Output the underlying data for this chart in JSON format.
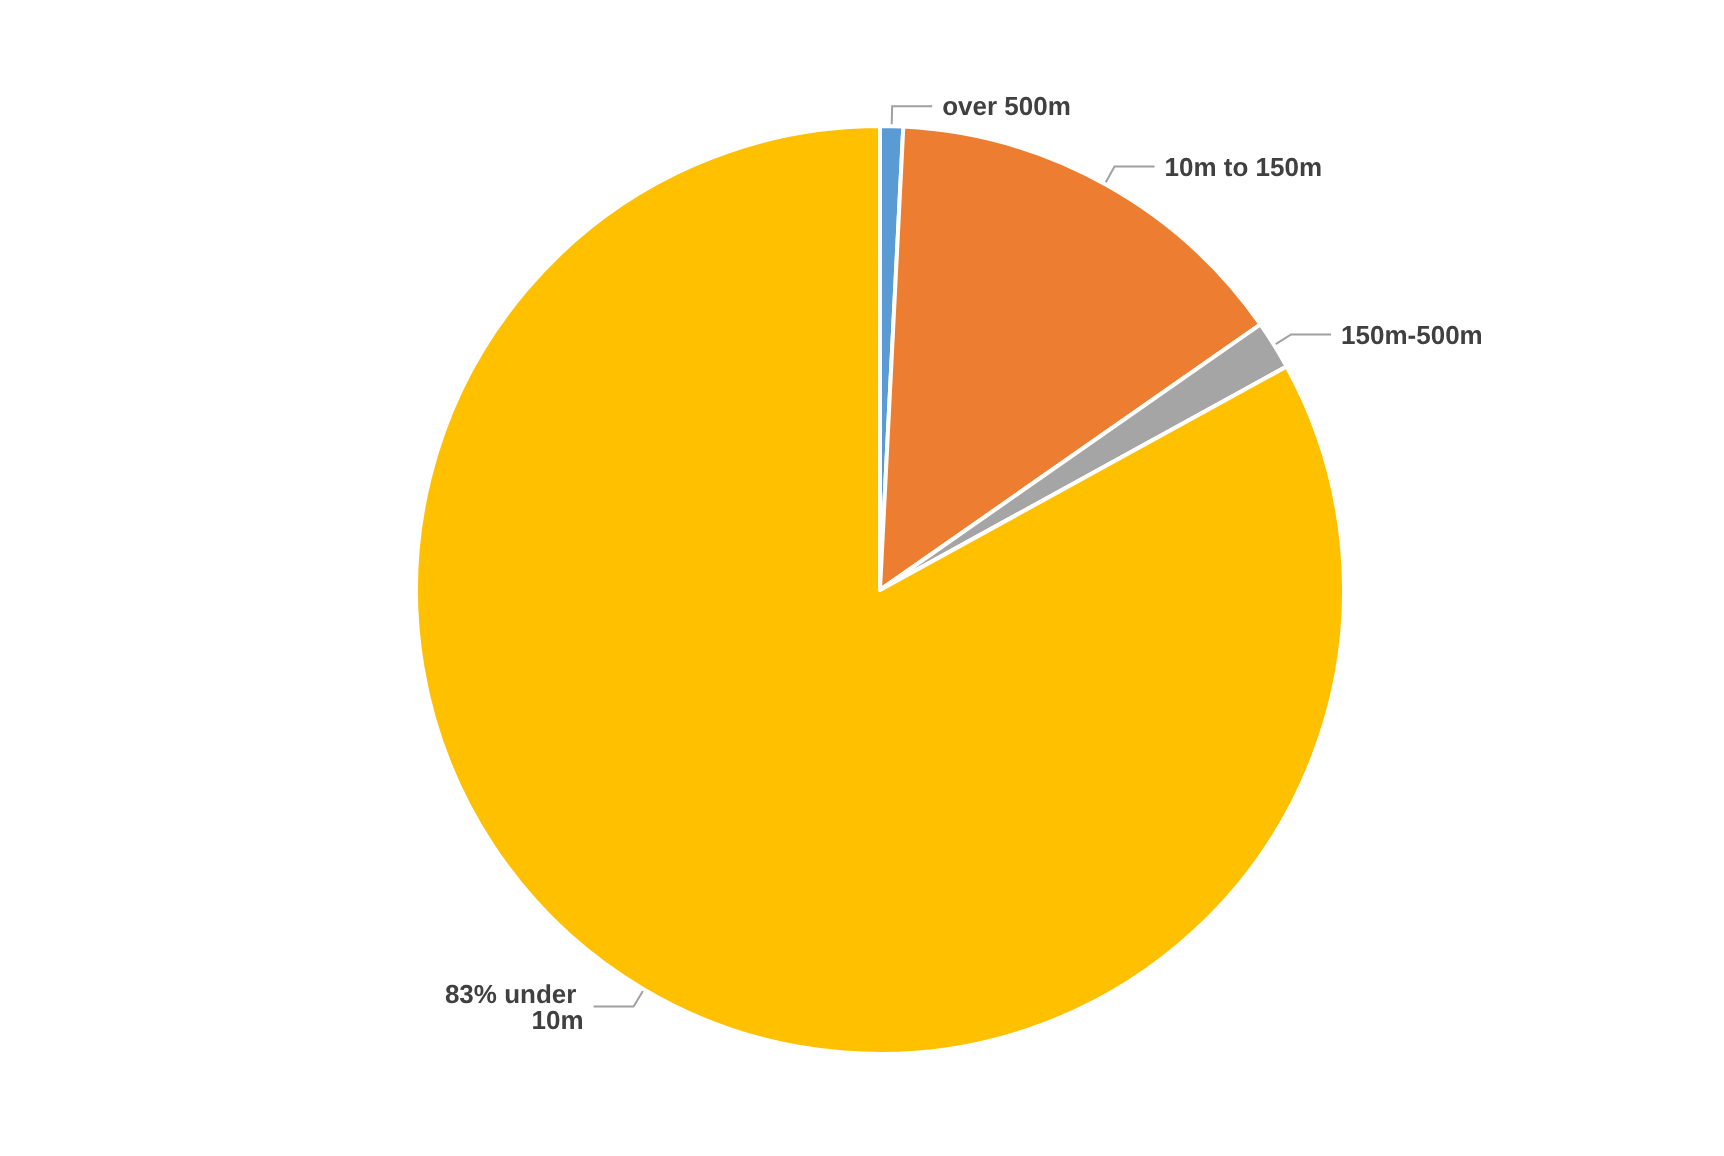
{
  "chart_data": {
    "type": "pie",
    "categories": [
      "over 500m",
      "10m to 150m",
      "150m-500m",
      "83% under 10m"
    ],
    "values": [
      0.8,
      14.5,
      1.7,
      83
    ],
    "colors": [
      "#5b9bd5",
      "#ed7d31",
      "#a5a5a5",
      "#ffc000"
    ],
    "legend": false
  }
}
